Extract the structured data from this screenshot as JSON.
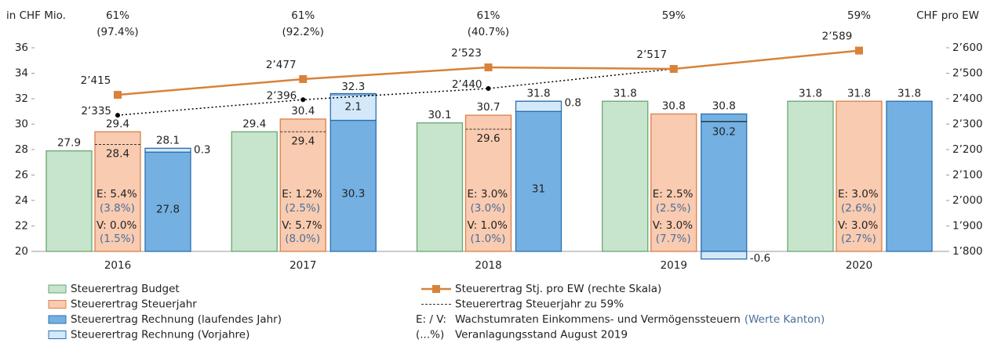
{
  "chart_data": {
    "type": "bar",
    "ylabel": "in CHF Mio.",
    "y2label": "CHF pro EW",
    "categories": [
      "2016",
      "2017",
      "2018",
      "2019",
      "2020"
    ],
    "ylim": [
      20,
      36
    ],
    "yticks": [
      20,
      22,
      24,
      26,
      28,
      30,
      32,
      34,
      36
    ],
    "y2lim": [
      1800,
      2600
    ],
    "y2ticks": [
      {
        "value": 1800,
        "label": "1’800"
      },
      {
        "value": 1900,
        "label": "1’900"
      },
      {
        "value": 2000,
        "label": "2’000"
      },
      {
        "value": 2100,
        "label": "2’100"
      },
      {
        "value": 2200,
        "label": "2’200"
      },
      {
        "value": 2300,
        "label": "2’300"
      },
      {
        "value": 2400,
        "label": "2’400"
      },
      {
        "value": 2500,
        "label": "2’500"
      },
      {
        "value": 2600,
        "label": "2’600"
      }
    ],
    "top_labels": [
      {
        "pct": "61%",
        "stand": "(97.4%)"
      },
      {
        "pct": "61%",
        "stand": "(92.2%)"
      },
      {
        "pct": "61%",
        "stand": "(40.7%)"
      },
      {
        "pct": "59%"
      },
      {
        "pct": "59%"
      }
    ],
    "series": [
      {
        "name": "Steuerertrag Budget",
        "color": "#c6e5cc",
        "stroke": "#6aa56e",
        "values": [
          27.9,
          29.4,
          30.1,
          31.8,
          31.8
        ]
      },
      {
        "name": "Steuerertrag Steuerjahr",
        "color": "#f9cbb0",
        "stroke": "#d9814a",
        "values": [
          29.4,
          30.4,
          30.7,
          30.8,
          31.8
        ]
      },
      {
        "name": "Steuerertrag Rechnung (laufendes Jahr)",
        "color": "#74b1e2",
        "stroke": "#2d6fb0",
        "values": [
          27.8,
          30.3,
          31.0,
          30.8,
          31.8
        ]
      },
      {
        "name": "Steuerertrag Rechnung (Vorjahre)",
        "color": "#d3e8f9",
        "stroke": "#2d6fb0",
        "values": [
          0.3,
          2.1,
          0.8,
          -0.6,
          null
        ]
      },
      {
        "name": "Steuerertrag Stj. pro EW (rechte Skala)",
        "color": "#d8823a",
        "axis": "y2",
        "values": [
          2415,
          2477,
          2523,
          2517,
          2589
        ],
        "value_labels": [
          "2’415",
          "2’477",
          "2’523",
          "2’517",
          "2’589"
        ]
      },
      {
        "name": "Steuerertrag Steuerjahr zu 59%",
        "color": "#333333",
        "values": [
          28.4,
          29.4,
          29.6,
          null,
          null
        ]
      }
    ],
    "dotted_line": {
      "color": "#000000",
      "axis": "y2",
      "values": [
        2335,
        2396,
        2440,
        2517,
        null
      ],
      "value_labels": [
        "2’335",
        "2’396",
        "2’440",
        null,
        null
      ]
    },
    "totals": [
      28.1,
      32.3,
      31.8,
      30.2,
      null
    ],
    "growth": [
      {
        "e": "E: 5.4%",
        "ek": "(3.8%)",
        "v": "V: 0.0%",
        "vk": "(1.5%)"
      },
      {
        "e": "E: 1.2%",
        "ek": "(2.5%)",
        "v": "V: 5.7%",
        "vk": "(8.0%)"
      },
      {
        "e": "E: 3.0%",
        "ek": "(3.0%)",
        "v": "V: 1.0%",
        "vk": "(1.0%)"
      },
      {
        "e": "E: 2.5%",
        "ek": "(2.5%)",
        "v": "V: 3.0%",
        "vk": "(7.7%)"
      },
      {
        "e": "E: 3.0%",
        "ek": "(2.6%)",
        "v": "V: 3.0%",
        "vk": "(2.7%)"
      }
    ],
    "notes": [
      {
        "key": "E: / V:",
        "text": "Wachstumraten Einkommens- und Vermögenssteuern",
        "highlight": "(Werte Kanton)"
      },
      {
        "key": "(...%)",
        "text": "Veranlagungsstand August 2019"
      }
    ]
  }
}
